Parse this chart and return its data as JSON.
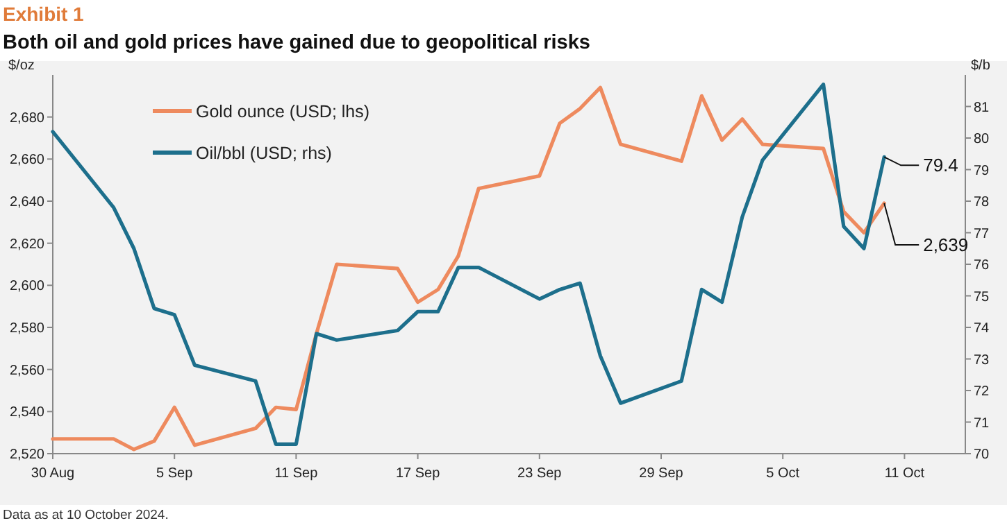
{
  "chart_data": {
    "type": "line",
    "subtitle": "Exhibit 1",
    "title": "Both oil and gold prices have gained due to geopolitical risks",
    "ylabel": "$/oz",
    "y2label": "$/b",
    "x": [
      "2024-08-30",
      "2024-09-02",
      "2024-09-03",
      "2024-09-04",
      "2024-09-05",
      "2024-09-06",
      "2024-09-09",
      "2024-09-10",
      "2024-09-11",
      "2024-09-12",
      "2024-09-13",
      "2024-09-16",
      "2024-09-17",
      "2024-09-18",
      "2024-09-19",
      "2024-09-20",
      "2024-09-23",
      "2024-09-24",
      "2024-09-25",
      "2024-09-26",
      "2024-09-27",
      "2024-09-30",
      "2024-10-01",
      "2024-10-02",
      "2024-10-03",
      "2024-10-04",
      "2024-10-07",
      "2024-10-08",
      "2024-10-09",
      "2024-10-10"
    ],
    "series": [
      {
        "name": "Gold ounce (USD; lhs)",
        "color": "#ee8a5e",
        "values": [
          2527,
          2527,
          2522,
          2526,
          2542,
          2524,
          2532,
          2542,
          2541,
          2577,
          2610,
          2608,
          2592,
          2598,
          2614,
          2646,
          2652,
          2677,
          2684,
          2694,
          2667,
          2659,
          2690,
          2669,
          2679,
          2667,
          2665,
          2635,
          2625,
          2639
        ],
        "value_labels": [
          null,
          null,
          null,
          null,
          null,
          null,
          null,
          null,
          null,
          null,
          null,
          null,
          null,
          null,
          null,
          null,
          null,
          null,
          null,
          null,
          null,
          null,
          null,
          null,
          null,
          null,
          null,
          null,
          null,
          "2,639"
        ]
      },
      {
        "name": "Oil/bbl (USD; rhs)",
        "color": "#1d6f8c",
        "axis": "y2",
        "values": [
          80.2,
          77.8,
          76.5,
          74.6,
          74.4,
          72.8,
          72.3,
          70.3,
          70.3,
          73.8,
          73.6,
          73.9,
          74.5,
          74.5,
          75.9,
          75.9,
          74.9,
          75.2,
          75.4,
          73.1,
          71.6,
          72.3,
          75.2,
          74.8,
          77.5,
          79.3,
          81.7,
          77.2,
          76.5,
          79.4
        ],
        "value_labels": [
          null,
          null,
          null,
          null,
          null,
          null,
          null,
          null,
          null,
          null,
          null,
          null,
          null,
          null,
          null,
          null,
          null,
          null,
          null,
          null,
          null,
          null,
          null,
          null,
          null,
          null,
          null,
          null,
          null,
          "79.4"
        ]
      }
    ],
    "xlim": [
      "2024-08-30",
      "2024-10-14"
    ],
    "xticks": [
      {
        "value": "2024-08-30",
        "label": "30 Aug"
      },
      {
        "value": "2024-09-05",
        "label": "5 Sep"
      },
      {
        "value": "2024-09-11",
        "label": "11 Sep"
      },
      {
        "value": "2024-09-17",
        "label": "17 Sep"
      },
      {
        "value": "2024-09-23",
        "label": "23 Sep"
      },
      {
        "value": "2024-09-29",
        "label": "29 Sep"
      },
      {
        "value": "2024-10-05",
        "label": "5 Oct"
      },
      {
        "value": "2024-10-11",
        "label": "11 Oct"
      }
    ],
    "ylim": [
      2520,
      2700
    ],
    "yticks": [
      {
        "value": 2520,
        "label": "2,520"
      },
      {
        "value": 2540,
        "label": "2,540"
      },
      {
        "value": 2560,
        "label": "2,560"
      },
      {
        "value": 2580,
        "label": "2,580"
      },
      {
        "value": 2600,
        "label": "2,600"
      },
      {
        "value": 2620,
        "label": "2,620"
      },
      {
        "value": 2640,
        "label": "2,640"
      },
      {
        "value": 2660,
        "label": "2,660"
      },
      {
        "value": 2680,
        "label": "2,680"
      }
    ],
    "y2lim": [
      70,
      82
    ],
    "y2ticks": [
      70,
      71,
      72,
      73,
      74,
      75,
      76,
      77,
      78,
      79,
      80,
      81
    ],
    "annotations": [
      "Data as at 10 October 2024."
    ],
    "legend": "top left",
    "grid": false,
    "marker": "none",
    "line_style": "solid"
  }
}
